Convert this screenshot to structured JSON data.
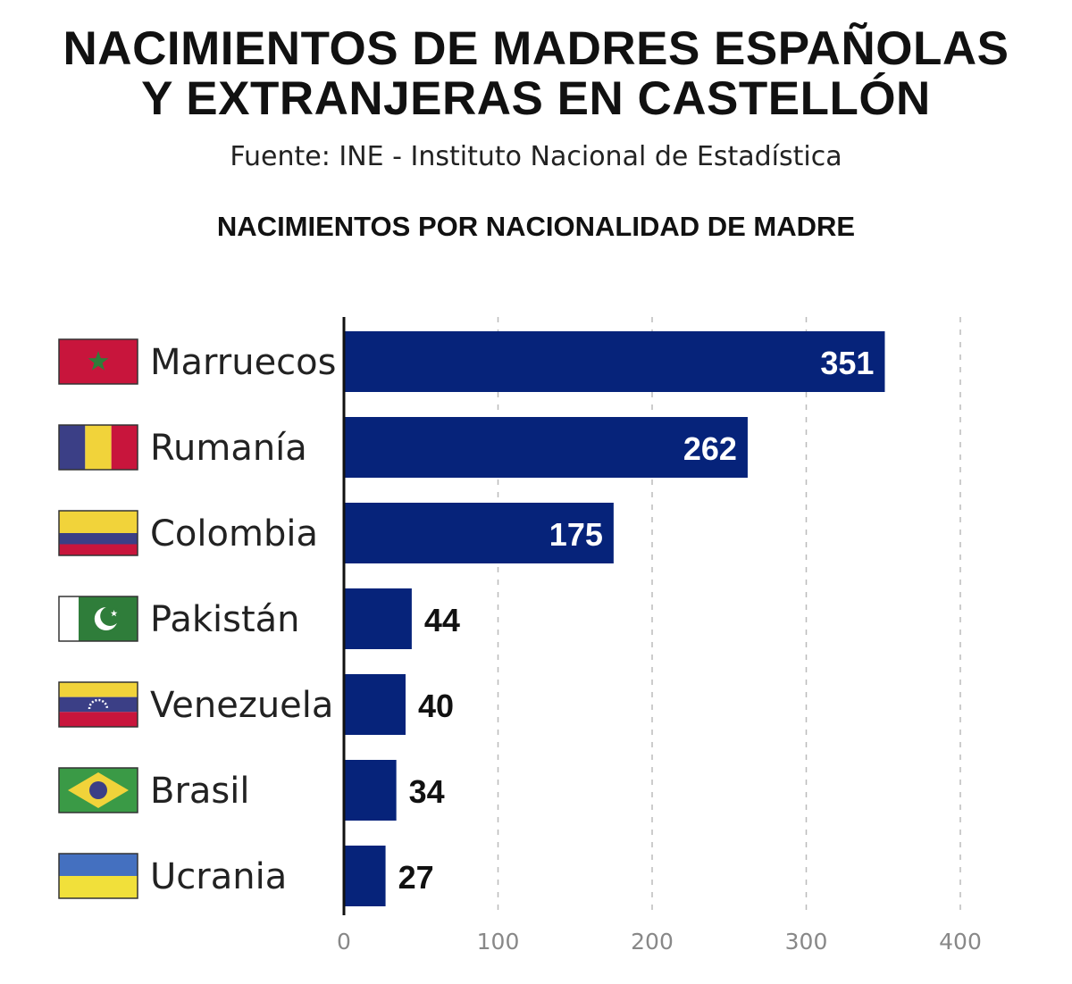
{
  "title_line1": "NACIMIENTOS DE MADRES ESPAÑOLAS",
  "title_line2": "Y EXTRANJERAS EN CASTELLÓN",
  "source": "Fuente: INE - Instituto Nacional de Estadística",
  "colors": {
    "bar": "#06237a",
    "axis": "#111111",
    "grid": "#bbbbbb",
    "tick_label": "#888888"
  },
  "chart_data": {
    "type": "bar",
    "orientation": "horizontal",
    "title": "NACIMIENTOS POR NACIONALIDAD DE MADRE",
    "categories": [
      "Marruecos",
      "Rumanía",
      "Colombia",
      "Pakistán",
      "Venezuela",
      "Brasil",
      "Ucrania"
    ],
    "flags": [
      "morocco-flag",
      "romania-flag",
      "colombia-flag",
      "pakistan-flag",
      "venezuela-flag",
      "brazil-flag",
      "ukraine-flag"
    ],
    "values": [
      351,
      262,
      175,
      44,
      40,
      34,
      27
    ],
    "xlim": [
      0,
      400
    ],
    "xticks": [
      0,
      100,
      200,
      300,
      400
    ],
    "grid": "vertical dashed",
    "xlabel": "",
    "ylabel": ""
  }
}
